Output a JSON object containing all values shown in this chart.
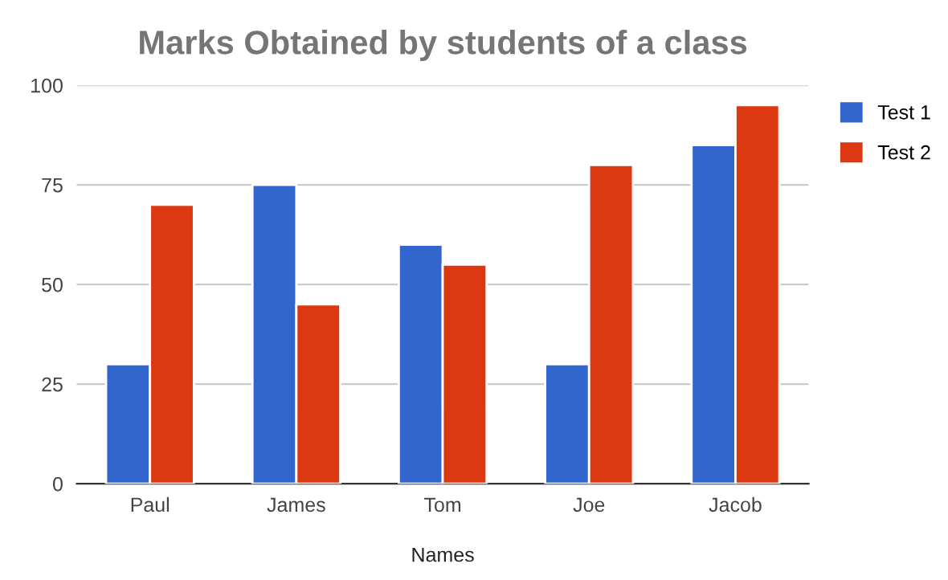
{
  "chart_data": {
    "type": "bar",
    "title": "Marks Obtained by students of a class",
    "xlabel": "Names",
    "categories": [
      "Paul",
      "James",
      "Tom",
      "Joe",
      "Jacob"
    ],
    "series": [
      {
        "name": "Test 1",
        "color": "#3366cc",
        "values": [
          30,
          75,
          60,
          30,
          85
        ]
      },
      {
        "name": "Test 2",
        "color": "#dc3912",
        "values": [
          70,
          45,
          55,
          80,
          95
        ]
      }
    ],
    "ylim": [
      0,
      100
    ],
    "yticks": [
      0,
      25,
      50,
      75,
      100
    ],
    "grid": "y",
    "legend": "top right"
  }
}
